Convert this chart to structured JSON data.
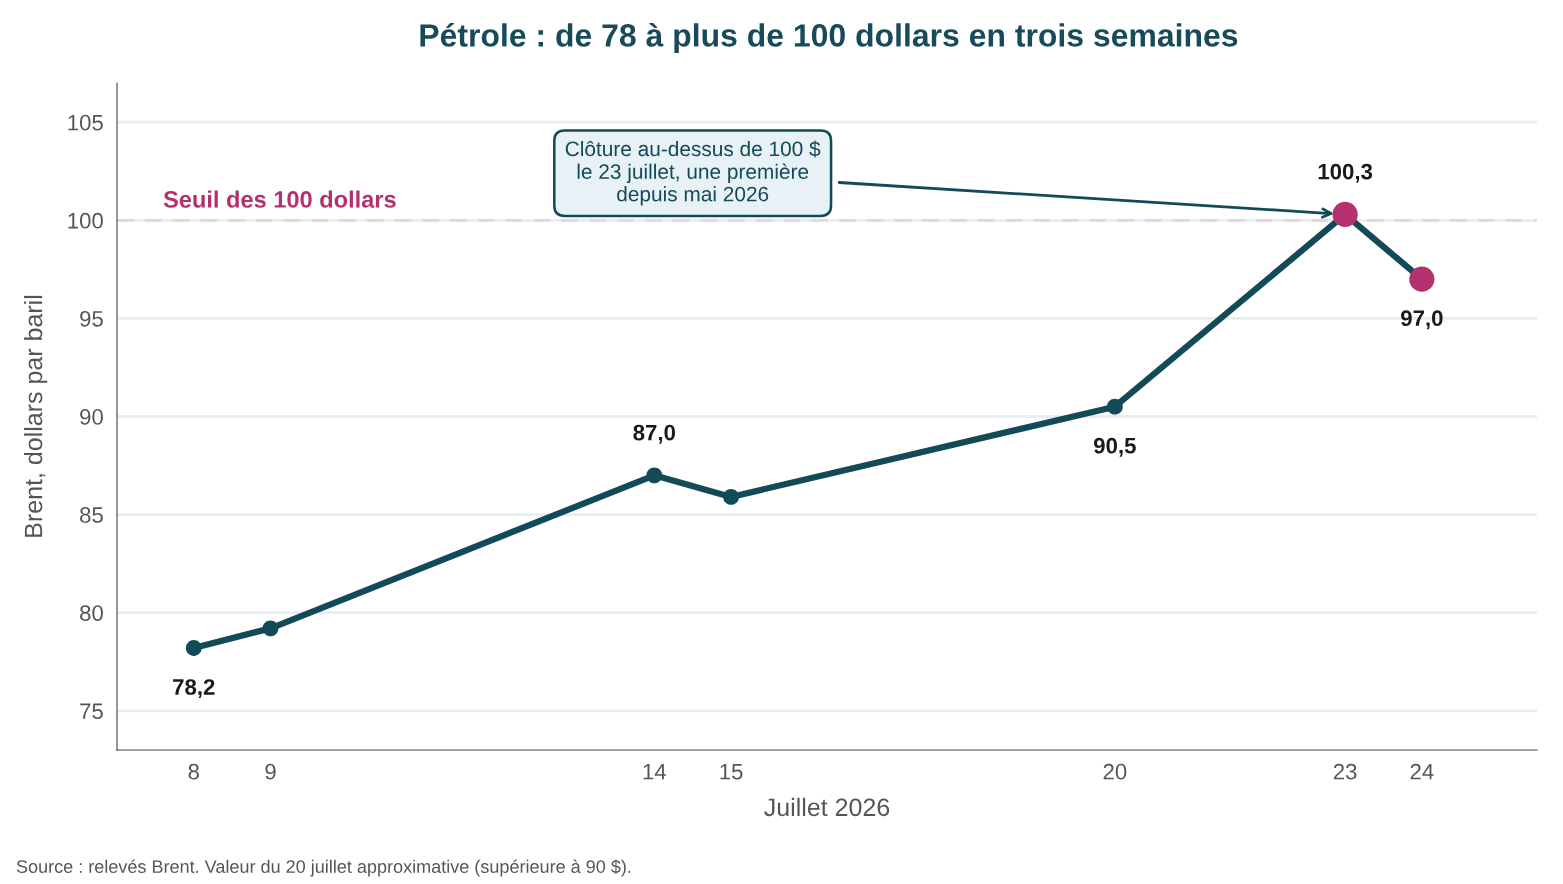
{
  "chart_data": {
    "type": "line",
    "title": "Pétrole : de 78 à plus de 100 dollars en trois semaines",
    "xlabel": "Juillet 2026",
    "ylabel": "Brent, dollars par baril",
    "x": [
      8,
      9,
      14,
      15,
      20,
      23,
      24
    ],
    "series": [
      {
        "color": "#124a58",
        "colors": [
          "#124a58",
          "#124a58",
          "#124a58",
          "#124a58",
          "#124a58",
          "#b5306e",
          "#b5306e"
        ],
        "values": [
          78.2,
          79.2,
          87.0,
          85.9,
          90.5,
          100.3,
          97.0
        ],
        "value_labels": [
          "78,2",
          null,
          "87,0",
          null,
          "90,5",
          "100,3",
          "97,0"
        ]
      }
    ],
    "xlim": [
      7,
      25.5
    ],
    "xticks": [
      8,
      9,
      14,
      15,
      20,
      23,
      24
    ],
    "ylim": [
      73,
      107
    ],
    "yticks": [
      75,
      80,
      85,
      90,
      95,
      100,
      105
    ],
    "grid": "y",
    "marker": "circle",
    "line_style": "solid",
    "ref_lines": [
      {
        "axis": "y",
        "value": 100,
        "label": "Seuil des 100 dollars",
        "color": "#e3d6de",
        "line_style": "dashed"
      }
    ],
    "annotations": [
      "Clôture au-dessus de 100 $\nle 23 juillet, une première\ndepuis mai 2026",
      "Source : relevés Brent. Valeur du 20 juillet approximative (supérieure à 90 $)."
    ]
  }
}
